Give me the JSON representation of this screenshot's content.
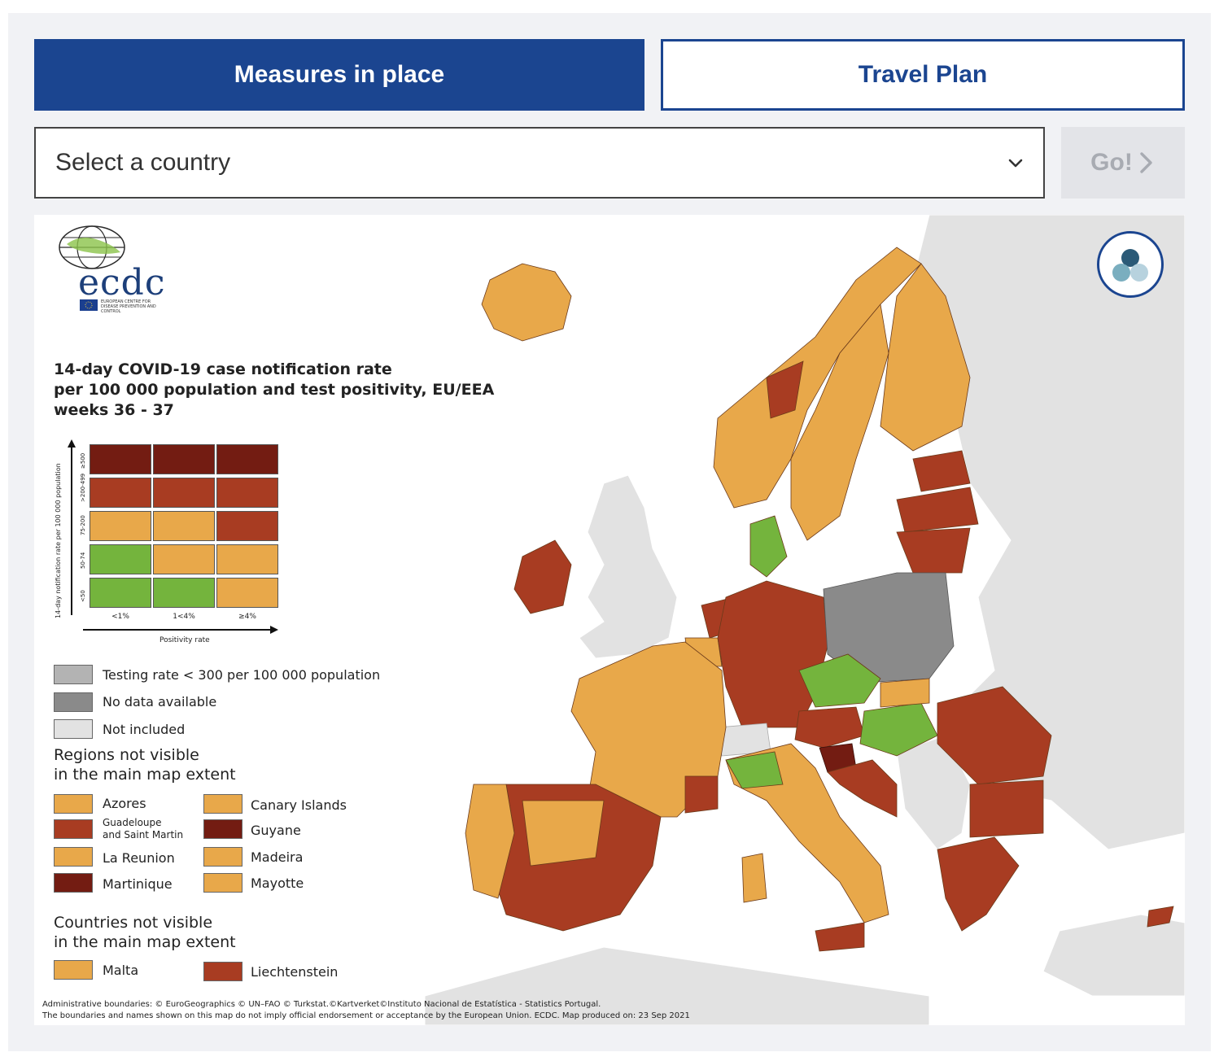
{
  "tabs": {
    "measures_label": "Measures in place",
    "travel_label": "Travel Plan"
  },
  "country_select": {
    "value": "Select a country",
    "icon": "chevron-down-icon"
  },
  "go_button": {
    "label": "Go!",
    "icon": "chevron-right-icon",
    "enabled": false
  },
  "map": {
    "logo": {
      "text": "ecdc",
      "subtitle": "EUROPEAN CENTRE FOR DISEASE PREVENTION AND CONTROL"
    },
    "title_lines": [
      "14-day COVID-19 case notification rate",
      "per 100 000 population and test positivity, EU/EEA",
      "weeks 36 - 37"
    ],
    "matrix": {
      "y_axis_label": "14-day notification rate per 100 000 population",
      "x_axis_label": "Positivity rate",
      "row_labels": [
        "≥500",
        ">200-499",
        "75-200",
        "50-74",
        "<50"
      ],
      "col_labels": [
        "<1%",
        "1<4%",
        "≥4%"
      ],
      "cells": [
        [
          "#731c12",
          "#731c12",
          "#731c12"
        ],
        [
          "#a83c22",
          "#a83c22",
          "#a83c22"
        ],
        [
          "#e8a84a",
          "#e8a84a",
          "#a83c22"
        ],
        [
          "#74b43d",
          "#e8a84a",
          "#e8a84a"
        ],
        [
          "#74b43d",
          "#74b43d",
          "#e8a84a"
        ]
      ]
    },
    "status_legend": [
      {
        "label": "Testing rate < 300 per 100 000 population",
        "color": "#b3b3b3"
      },
      {
        "label": "No data available",
        "color": "#8a8a8a"
      },
      {
        "label": "Not included",
        "color": "#e2e2e2"
      }
    ],
    "regions_heading": [
      "Regions not visible",
      "in the main map extent"
    ],
    "regions": [
      {
        "label": "Azores",
        "color": "#e8a84a"
      },
      {
        "label": "Canary Islands",
        "color": "#e8a84a"
      },
      {
        "label": "Guadeloupe and Saint Martin",
        "line1": "Guadeloupe",
        "line2": "and Saint Martin",
        "color": "#a83c22"
      },
      {
        "label": "Guyane",
        "color": "#731c12"
      },
      {
        "label": "La Reunion",
        "color": "#e8a84a"
      },
      {
        "label": "Madeira",
        "color": "#e8a84a"
      },
      {
        "label": "Martinique",
        "color": "#731c12"
      },
      {
        "label": "Mayotte",
        "color": "#e8a84a"
      }
    ],
    "countries_heading": [
      "Countries not visible",
      "in the main map extent"
    ],
    "countries": [
      {
        "label": "Malta",
        "color": "#e8a84a"
      },
      {
        "label": "Liechtenstein",
        "color": "#a83c22"
      }
    ],
    "credit_lines": [
      "Administrative boundaries: © EuroGeographics © UN–FAO © Turkstat.©Kartverket©Instituto Nacional de Estatística - Statistics Portugal.",
      "The boundaries and names shown on this map do not imply official endorsement or acceptance by the European Union. ECDC. Map produced on: 23 Sep 2021"
    ],
    "layers_button_icon": "layers-icon",
    "colors": {
      "orange": "#e8a84a",
      "red": "#a83c22",
      "dark_red": "#731c12",
      "green": "#74b43d",
      "no_data": "#8a8a8a",
      "not_included": "#e2e2e2",
      "brand_blue": "#1b4590"
    },
    "country_status": [
      {
        "country": "Iceland",
        "color": "#e8a84a"
      },
      {
        "country": "Ireland",
        "color": "#a83c22"
      },
      {
        "country": "Norway",
        "color": "#e8a84a"
      },
      {
        "country": "Sweden",
        "color": "#e8a84a"
      },
      {
        "country": "Finland",
        "color": "#e8a84a"
      },
      {
        "country": "Estonia",
        "color": "#a83c22"
      },
      {
        "country": "Latvia",
        "color": "#a83c22"
      },
      {
        "country": "Lithuania",
        "color": "#a83c22"
      },
      {
        "country": "Denmark",
        "color": "#74b43d"
      },
      {
        "country": "Netherlands",
        "color": "#a83c22"
      },
      {
        "country": "Belgium",
        "color": "#e8a84a"
      },
      {
        "country": "Germany",
        "color": "#a83c22"
      },
      {
        "country": "Poland",
        "color": "#8a8a8a"
      },
      {
        "country": "Czechia",
        "color": "#74b43d"
      },
      {
        "country": "Austria",
        "color": "#a83c22"
      },
      {
        "country": "Hungary",
        "color": "#74b43d"
      },
      {
        "country": "Slovenia",
        "color": "#731c12"
      },
      {
        "country": "Croatia",
        "color": "#a83c22"
      },
      {
        "country": "Romania",
        "color": "#a83c22"
      },
      {
        "country": "Bulgaria",
        "color": "#a83c22"
      },
      {
        "country": "Greece",
        "color": "#a83c22"
      },
      {
        "country": "France",
        "color": "#e8a84a"
      },
      {
        "country": "Spain",
        "color": "#a83c22"
      },
      {
        "country": "Portugal",
        "color": "#e8a84a"
      },
      {
        "country": "Italy",
        "color": "#e8a84a"
      },
      {
        "country": "Cyprus",
        "color": "#a83c22"
      },
      {
        "country": "Switzerland",
        "color": "#e2e2e2"
      },
      {
        "country": "United Kingdom",
        "color": "#e2e2e2"
      }
    ]
  }
}
